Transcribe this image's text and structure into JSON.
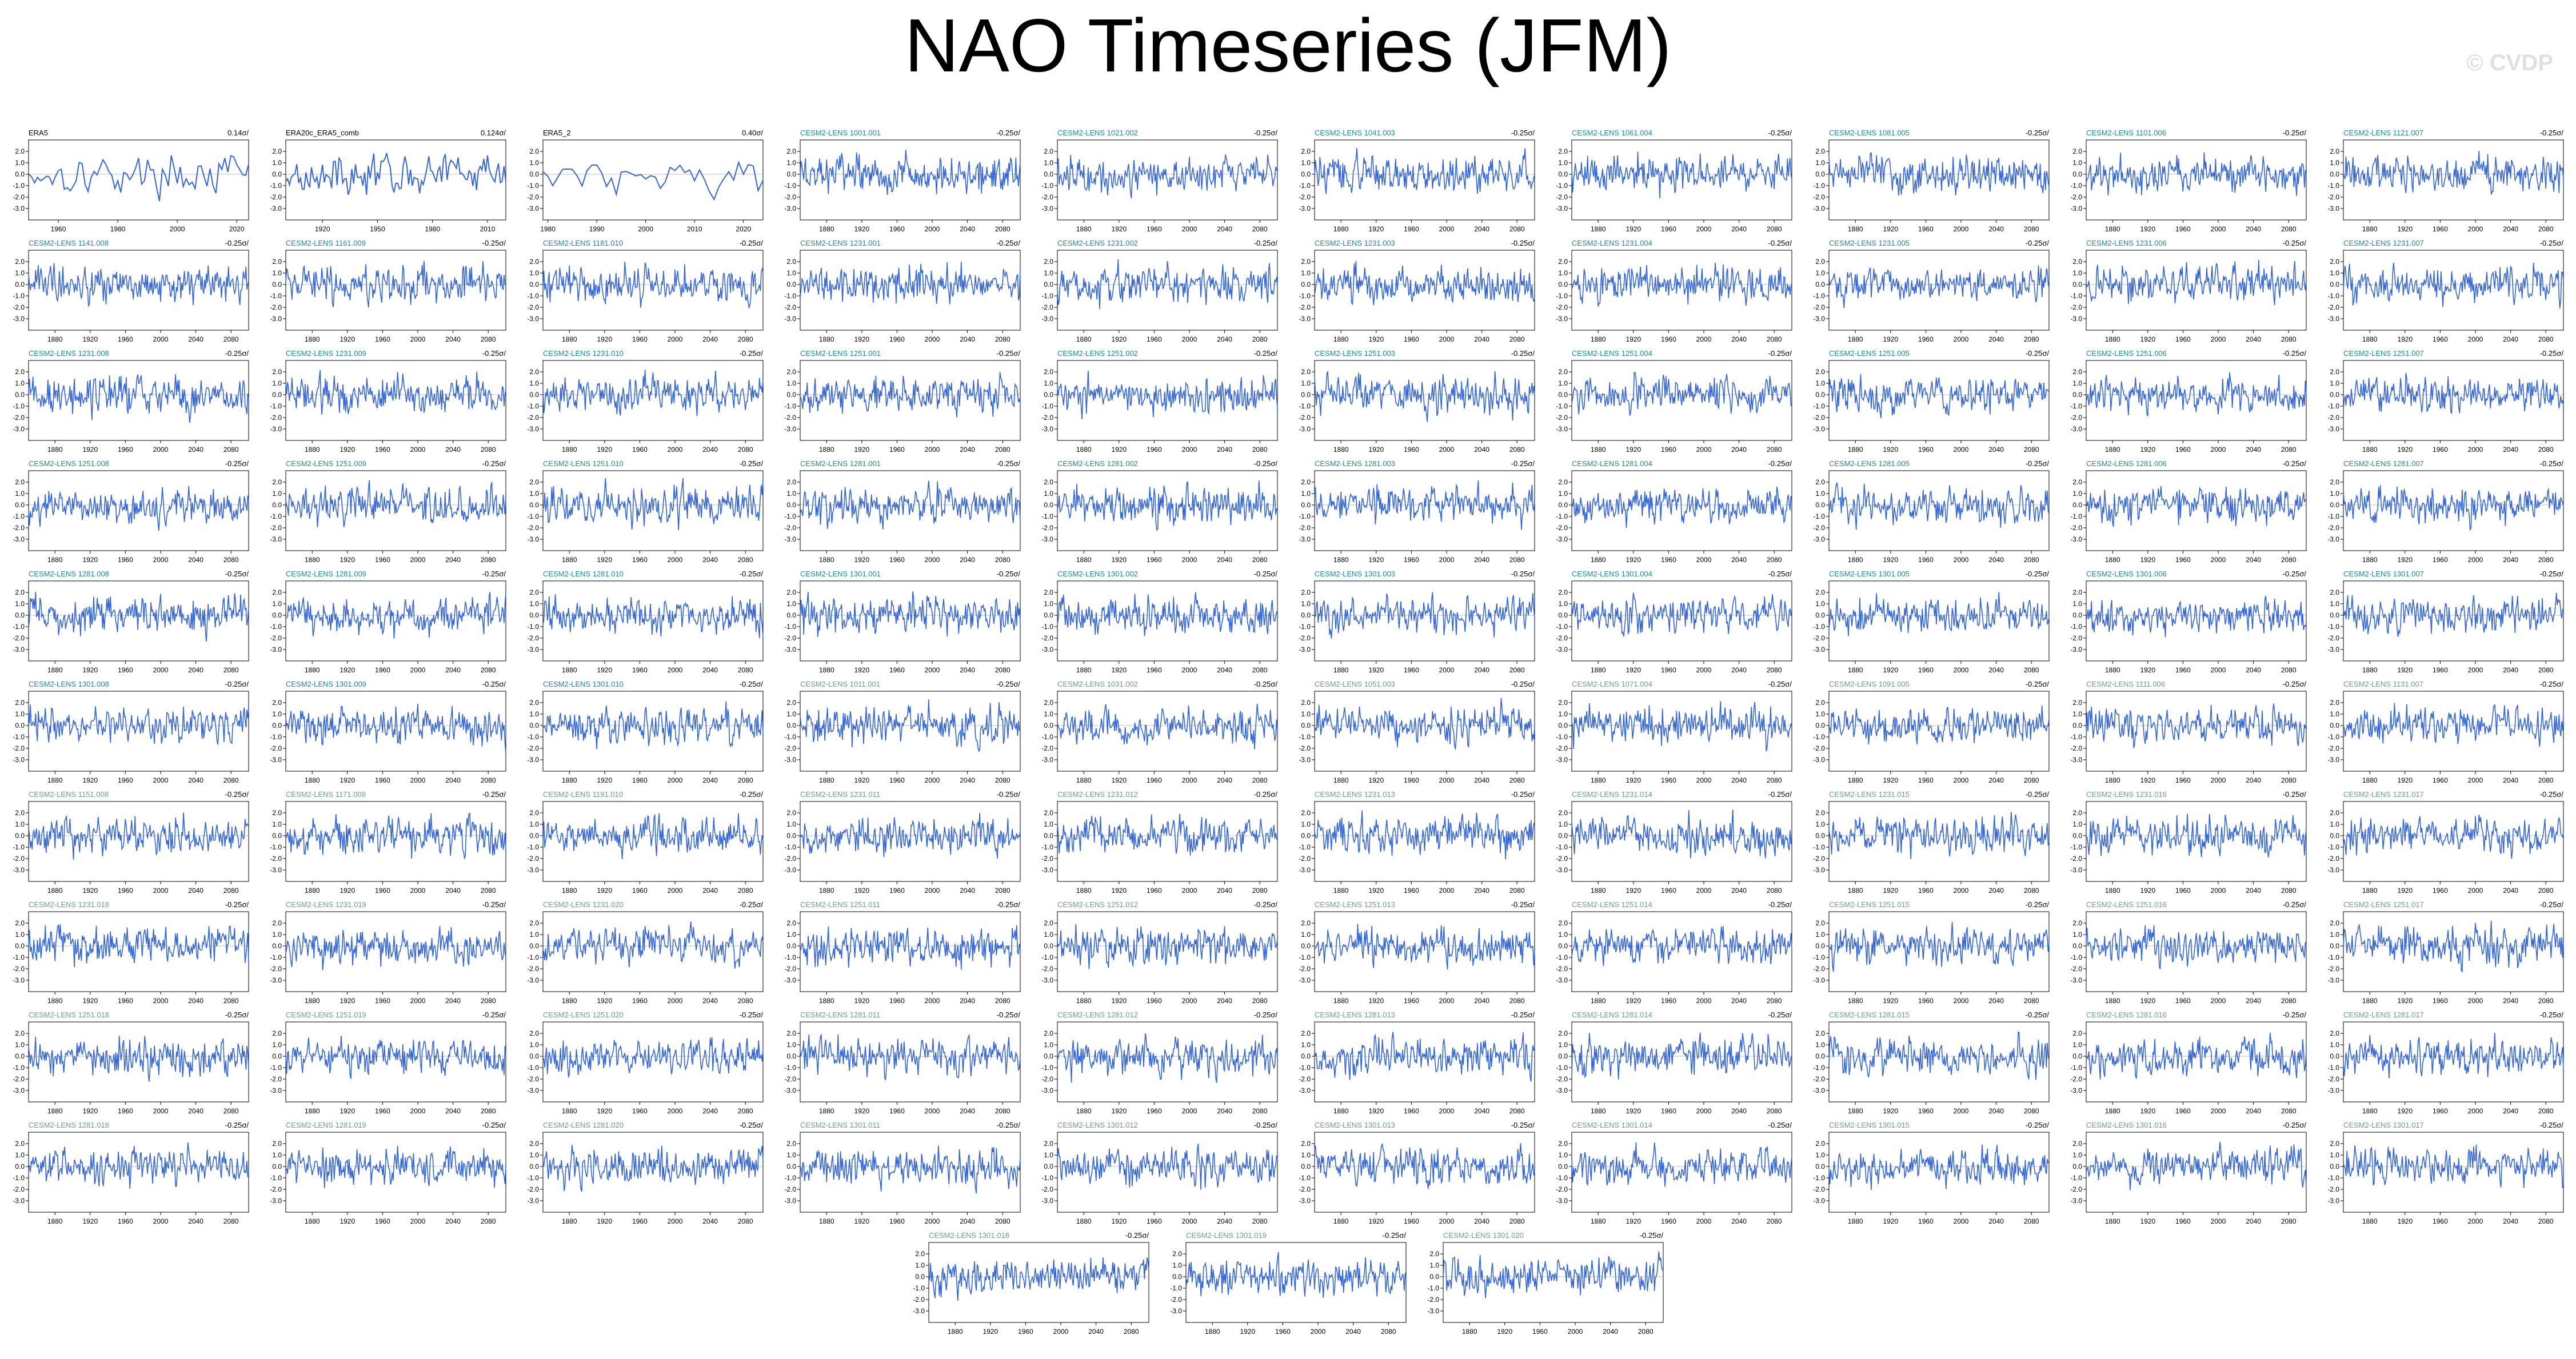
{
  "title": "NAO Timeseries (JFM)",
  "watermark": "© CVDP",
  "colors": {
    "line": "#3366dd",
    "trend": "#808080",
    "axis": "#000000",
    "member_title": "#1b8aa0"
  },
  "chart_data": {
    "type": "line",
    "layout": "small-multiples",
    "rows": 11,
    "cols": 10,
    "ylim": [
      -4,
      3
    ],
    "yticks": [
      "2.0",
      "1.0",
      "0.0",
      "-1.0",
      "-2.0",
      "-3.0"
    ],
    "panels": [
      {
        "name": "ERA5",
        "trend": "0.14σ/",
        "xticks": [
          "1960",
          "1980",
          "2000",
          "2020"
        ],
        "xlim": [
          1950,
          2024
        ],
        "kind": "obs"
      },
      {
        "name": "ERA20c_ERA5_comb",
        "trend": "0.124σ/",
        "xticks": [
          "1920",
          "1950",
          "1980",
          "2010"
        ],
        "xlim": [
          1900,
          2020
        ],
        "kind": "obs"
      },
      {
        "name": "ERA5_2",
        "trend": "0.40σ/",
        "xticks": [
          "1980",
          "1990",
          "2000",
          "2010",
          "2020"
        ],
        "xlim": [
          1979,
          2024
        ],
        "kind": "obs"
      },
      {
        "name": "CESM2-LENS 1001.001",
        "trend": "-0.25σ/",
        "kind": "member"
      },
      {
        "name": "CESM2-LENS 1021.002",
        "trend": "-0.25σ/",
        "kind": "member"
      },
      {
        "name": "CESM2-LENS 1041.003",
        "trend": "-0.25σ/",
        "kind": "member"
      },
      {
        "name": "CESM2-LENS 1061.004",
        "trend": "-0.25σ/",
        "kind": "member"
      },
      {
        "name": "CESM2-LENS 1081.005",
        "trend": "-0.25σ/",
        "kind": "member"
      },
      {
        "name": "CESM2-LENS 1101.006",
        "trend": "-0.25σ/",
        "kind": "member"
      },
      {
        "name": "CESM2-LENS 1121.007",
        "trend": "-0.25σ/",
        "kind": "member"
      },
      {
        "name": "CESM2-LENS 1141.008",
        "trend": "-0.25σ/",
        "kind": "member"
      },
      {
        "name": "CESM2-LENS 1161.009",
        "trend": "-0.25σ/",
        "kind": "member"
      },
      {
        "name": "CESM2-LENS 1181.010",
        "trend": "-0.25σ/",
        "kind": "member"
      },
      {
        "name": "CESM2-LENS 1231.001",
        "trend": "-0.25σ/",
        "kind": "member"
      },
      {
        "name": "CESM2-LENS 1231.002",
        "trend": "-0.25σ/",
        "kind": "member"
      },
      {
        "name": "CESM2-LENS 1231.003",
        "trend": "-0.25σ/",
        "kind": "member"
      },
      {
        "name": "CESM2-LENS 1231.004",
        "trend": "-0.25σ/",
        "kind": "member"
      },
      {
        "name": "CESM2-LENS 1231.005",
        "trend": "-0.25σ/",
        "kind": "member"
      },
      {
        "name": "CESM2-LENS 1231.006",
        "trend": "-0.25σ/",
        "kind": "member"
      },
      {
        "name": "CESM2-LENS 1231.007",
        "trend": "-0.25σ/",
        "kind": "member"
      },
      {
        "name": "CESM2-LENS 1231.008",
        "trend": "-0.25σ/",
        "kind": "member"
      },
      {
        "name": "CESM2-LENS 1231.009",
        "trend": "-0.25σ/",
        "kind": "member"
      },
      {
        "name": "CESM2-LENS 1231.010",
        "trend": "-0.25σ/",
        "kind": "member"
      },
      {
        "name": "CESM2-LENS 1251.001",
        "trend": "-0.25σ/",
        "kind": "member"
      },
      {
        "name": "CESM2-LENS 1251.002",
        "trend": "-0.25σ/",
        "kind": "member"
      },
      {
        "name": "CESM2-LENS 1251.003",
        "trend": "-0.25σ/",
        "kind": "member"
      },
      {
        "name": "CESM2-LENS 1251.004",
        "trend": "-0.25σ/",
        "kind": "member"
      },
      {
        "name": "CESM2-LENS 1251.005",
        "trend": "-0.25σ/",
        "kind": "member"
      },
      {
        "name": "CESM2-LENS 1251.006",
        "trend": "-0.25σ/",
        "kind": "member"
      },
      {
        "name": "CESM2-LENS 1251.007",
        "trend": "-0.25σ/",
        "kind": "member"
      },
      {
        "name": "CESM2-LENS 1251.008",
        "trend": "-0.25σ/",
        "kind": "member"
      },
      {
        "name": "CESM2-LENS 1251.009",
        "trend": "-0.25σ/",
        "kind": "member"
      },
      {
        "name": "CESM2-LENS 1251.010",
        "trend": "-0.25σ/",
        "kind": "member"
      },
      {
        "name": "CESM2-LENS 1281.001",
        "trend": "-0.25σ/",
        "kind": "member"
      },
      {
        "name": "CESM2-LENS 1281.002",
        "trend": "-0.25σ/",
        "kind": "member"
      },
      {
        "name": "CESM2-LENS 1281.003",
        "trend": "-0.25σ/",
        "kind": "member"
      },
      {
        "name": "CESM2-LENS 1281.004",
        "trend": "-0.25σ/",
        "kind": "member"
      },
      {
        "name": "CESM2-LENS 1281.005",
        "trend": "-0.25σ/",
        "kind": "member"
      },
      {
        "name": "CESM2-LENS 1281.006",
        "trend": "-0.25σ/",
        "kind": "member"
      },
      {
        "name": "CESM2-LENS 1281.007",
        "trend": "-0.25σ/",
        "kind": "member"
      },
      {
        "name": "CESM2-LENS 1281.008",
        "trend": "-0.25σ/",
        "kind": "member"
      },
      {
        "name": "CESM2-LENS 1281.009",
        "trend": "-0.25σ/",
        "kind": "member"
      },
      {
        "name": "CESM2-LENS 1281.010",
        "trend": "-0.25σ/",
        "kind": "member"
      },
      {
        "name": "CESM2-LENS 1301.001",
        "trend": "-0.25σ/",
        "kind": "member"
      },
      {
        "name": "CESM2-LENS 1301.002",
        "trend": "-0.25σ/",
        "kind": "member"
      },
      {
        "name": "CESM2-LENS 1301.003",
        "trend": "-0.25σ/",
        "kind": "member"
      },
      {
        "name": "CESM2-LENS 1301.004",
        "trend": "-0.25σ/",
        "kind": "member"
      },
      {
        "name": "CESM2-LENS 1301.005",
        "trend": "-0.25σ/",
        "kind": "member"
      },
      {
        "name": "CESM2-LENS 1301.006",
        "trend": "-0.25σ/",
        "kind": "member"
      },
      {
        "name": "CESM2-LENS 1301.007",
        "trend": "-0.25σ/",
        "kind": "member"
      },
      {
        "name": "CESM2-LENS 1301.008",
        "trend": "-0.25σ/",
        "kind": "member"
      },
      {
        "name": "CESM2-LENS 1301.009",
        "trend": "-0.25σ/",
        "kind": "member"
      },
      {
        "name": "CESM2-LENS 1301.010",
        "trend": "-0.25σ/",
        "kind": "member"
      },
      {
        "name": "CESM2-LENS 1011.001",
        "trend": "-0.25σ/",
        "kind": "member-faded"
      },
      {
        "name": "CESM2-LENS 1031.002",
        "trend": "-0.25σ/",
        "kind": "member-faded"
      },
      {
        "name": "CESM2-LENS 1051.003",
        "trend": "-0.25σ/",
        "kind": "member-faded"
      },
      {
        "name": "CESM2-LENS 1071.004",
        "trend": "-0.25σ/",
        "kind": "member-faded"
      },
      {
        "name": "CESM2-LENS 1091.005",
        "trend": "-0.25σ/",
        "kind": "member-faded"
      },
      {
        "name": "CESM2-LENS 1111.006",
        "trend": "-0.25σ/",
        "kind": "member-faded"
      },
      {
        "name": "CESM2-LENS 1131.007",
        "trend": "-0.25σ/",
        "kind": "member-faded"
      },
      {
        "name": "CESM2-LENS 1151.008",
        "trend": "-0.25σ/",
        "kind": "member-faded"
      },
      {
        "name": "CESM2-LENS 1171.009",
        "trend": "-0.25σ/",
        "kind": "member-faded"
      },
      {
        "name": "CESM2-LENS 1191.010",
        "trend": "-0.25σ/",
        "kind": "member-faded"
      },
      {
        "name": "CESM2-LENS 1231.011",
        "trend": "-0.25σ/",
        "kind": "member-faded"
      },
      {
        "name": "CESM2-LENS 1231.012",
        "trend": "-0.25σ/",
        "kind": "member-faded"
      },
      {
        "name": "CESM2-LENS 1231.013",
        "trend": "-0.25σ/",
        "kind": "member-faded"
      },
      {
        "name": "CESM2-LENS 1231.014",
        "trend": "-0.25σ/",
        "kind": "member-faded"
      },
      {
        "name": "CESM2-LENS 1231.015",
        "trend": "-0.25σ/",
        "kind": "member-faded"
      },
      {
        "name": "CESM2-LENS 1231.016",
        "trend": "-0.25σ/",
        "kind": "member-faded"
      },
      {
        "name": "CESM2-LENS 1231.017",
        "trend": "-0.25σ/",
        "kind": "member-faded"
      },
      {
        "name": "CESM2-LENS 1231.018",
        "trend": "-0.25σ/",
        "kind": "member-faded"
      },
      {
        "name": "CESM2-LENS 1231.019",
        "trend": "-0.25σ/",
        "kind": "member-faded"
      },
      {
        "name": "CESM2-LENS 1231.020",
        "trend": "-0.25σ/",
        "kind": "member-faded"
      },
      {
        "name": "CESM2-LENS 1251.011",
        "trend": "-0.25σ/",
        "kind": "member-faded"
      },
      {
        "name": "CESM2-LENS 1251.012",
        "trend": "-0.25σ/",
        "kind": "member-faded"
      },
      {
        "name": "CESM2-LENS 1251.013",
        "trend": "-0.25σ/",
        "kind": "member-faded"
      },
      {
        "name": "CESM2-LENS 1251.014",
        "trend": "-0.25σ/",
        "kind": "member-faded"
      },
      {
        "name": "CESM2-LENS 1251.015",
        "trend": "-0.25σ/",
        "kind": "member-faded"
      },
      {
        "name": "CESM2-LENS 1251.016",
        "trend": "-0.25σ/",
        "kind": "member-faded"
      },
      {
        "name": "CESM2-LENS 1251.017",
        "trend": "-0.25σ/",
        "kind": "member-faded"
      },
      {
        "name": "CESM2-LENS 1251.018",
        "trend": "-0.25σ/",
        "kind": "member-faded"
      },
      {
        "name": "CESM2-LENS 1251.019",
        "trend": "-0.25σ/",
        "kind": "member-faded"
      },
      {
        "name": "CESM2-LENS 1251.020",
        "trend": "-0.25σ/",
        "kind": "member-faded"
      },
      {
        "name": "CESM2-LENS 1281.011",
        "trend": "-0.25σ/",
        "kind": "member-faded"
      },
      {
        "name": "CESM2-LENS 1281.012",
        "trend": "-0.25σ/",
        "kind": "member-faded"
      },
      {
        "name": "CESM2-LENS 1281.013",
        "trend": "-0.25σ/",
        "kind": "member-faded"
      },
      {
        "name": "CESM2-LENS 1281.014",
        "trend": "-0.25σ/",
        "kind": "member-faded"
      },
      {
        "name": "CESM2-LENS 1281.015",
        "trend": "-0.25σ/",
        "kind": "member-faded"
      },
      {
        "name": "CESM2-LENS 1281.016",
        "trend": "-0.25σ/",
        "kind": "member-faded"
      },
      {
        "name": "CESM2-LENS 1281.017",
        "trend": "-0.25σ/",
        "kind": "member-faded"
      },
      {
        "name": "CESM2-LENS 1281.018",
        "trend": "-0.25σ/",
        "kind": "member-faded"
      },
      {
        "name": "CESM2-LENS 1281.019",
        "trend": "-0.25σ/",
        "kind": "member-faded"
      },
      {
        "name": "CESM2-LENS 1281.020",
        "trend": "-0.25σ/",
        "kind": "member-faded"
      },
      {
        "name": "CESM2-LENS 1301.011",
        "trend": "-0.25σ/",
        "kind": "member-faded"
      },
      {
        "name": "CESM2-LENS 1301.012",
        "trend": "-0.25σ/",
        "kind": "member-faded"
      },
      {
        "name": "CESM2-LENS 1301.013",
        "trend": "-0.25σ/",
        "kind": "member-faded"
      },
      {
        "name": "CESM2-LENS 1301.014",
        "trend": "-0.25σ/",
        "kind": "member-faded"
      },
      {
        "name": "CESM2-LENS 1301.015",
        "trend": "-0.25σ/",
        "kind": "member-faded"
      },
      {
        "name": "CESM2-LENS 1301.016",
        "trend": "-0.25σ/",
        "kind": "member-faded"
      },
      {
        "name": "CESM2-LENS 1301.017",
        "trend": "-0.25σ/",
        "kind": "member-faded"
      },
      {
        "name": "CESM2-LENS 1301.018",
        "trend": "-0.25σ/",
        "kind": "member-faded"
      },
      {
        "name": "CESM2-LENS 1301.019",
        "trend": "-0.25σ/",
        "kind": "member-faded"
      },
      {
        "name": "CESM2-LENS 1301.020",
        "trend": "-0.25σ/",
        "kind": "member-faded"
      }
    ],
    "member_xticks": [
      "1880",
      "1920",
      "1960",
      "2000",
      "2040",
      "2080"
    ],
    "member_xlim": [
      1850,
      2100
    ]
  }
}
